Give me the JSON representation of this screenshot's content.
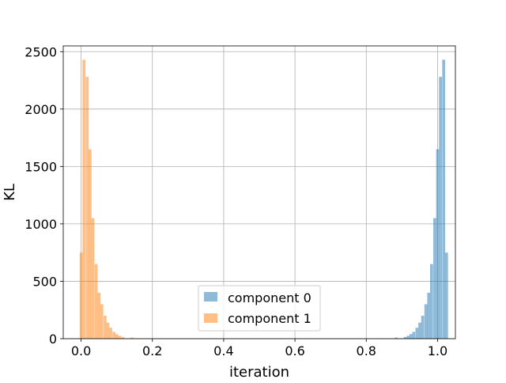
{
  "chart_data": {
    "type": "bar",
    "title": "",
    "xlabel": "iteration",
    "ylabel": "KL",
    "xlim": [
      -0.05,
      1.05
    ],
    "ylim": [
      0,
      2550
    ],
    "xticks": [
      "0.0",
      "0.2",
      "0.4",
      "0.6",
      "0.8",
      "1.0"
    ],
    "xtick_values": [
      0.0,
      0.2,
      0.4,
      0.6,
      0.8,
      1.0
    ],
    "yticks": [
      "0",
      "500",
      "1000",
      "1500",
      "2000",
      "2500"
    ],
    "ytick_values": [
      0,
      500,
      1000,
      1500,
      2000,
      2500
    ],
    "grid": true,
    "legend_placement": "lower center",
    "bin_width": 0.0083,
    "series": [
      {
        "name": "component 0",
        "color": "#1f77b4",
        "opacity": 0.5,
        "bins": [
          {
            "x": 0.88,
            "count": 10
          },
          {
            "x": 0.905,
            "count": 15
          },
          {
            "x": 0.913,
            "count": 25
          },
          {
            "x": 0.921,
            "count": 40
          },
          {
            "x": 0.929,
            "count": 60
          },
          {
            "x": 0.938,
            "count": 95
          },
          {
            "x": 0.946,
            "count": 140
          },
          {
            "x": 0.954,
            "count": 200
          },
          {
            "x": 0.963,
            "count": 300
          },
          {
            "x": 0.971,
            "count": 400
          },
          {
            "x": 0.979,
            "count": 650
          },
          {
            "x": 0.988,
            "count": 1050
          },
          {
            "x": 0.996,
            "count": 1650
          },
          {
            "x": 1.004,
            "count": 2280
          },
          {
            "x": 1.013,
            "count": 2430
          },
          {
            "x": 1.021,
            "count": 750
          }
        ]
      },
      {
        "name": "component 1",
        "color": "#ff7f0e",
        "opacity": 0.5,
        "bins": [
          {
            "x": -0.004,
            "count": 750
          },
          {
            "x": 0.004,
            "count": 2430
          },
          {
            "x": 0.013,
            "count": 2280
          },
          {
            "x": 0.021,
            "count": 1650
          },
          {
            "x": 0.029,
            "count": 1050
          },
          {
            "x": 0.038,
            "count": 650
          },
          {
            "x": 0.046,
            "count": 400
          },
          {
            "x": 0.054,
            "count": 300
          },
          {
            "x": 0.063,
            "count": 200
          },
          {
            "x": 0.071,
            "count": 140
          },
          {
            "x": 0.079,
            "count": 95
          },
          {
            "x": 0.088,
            "count": 60
          },
          {
            "x": 0.096,
            "count": 40
          },
          {
            "x": 0.104,
            "count": 25
          },
          {
            "x": 0.113,
            "count": 15
          },
          {
            "x": 0.138,
            "count": 10
          }
        ]
      }
    ]
  }
}
